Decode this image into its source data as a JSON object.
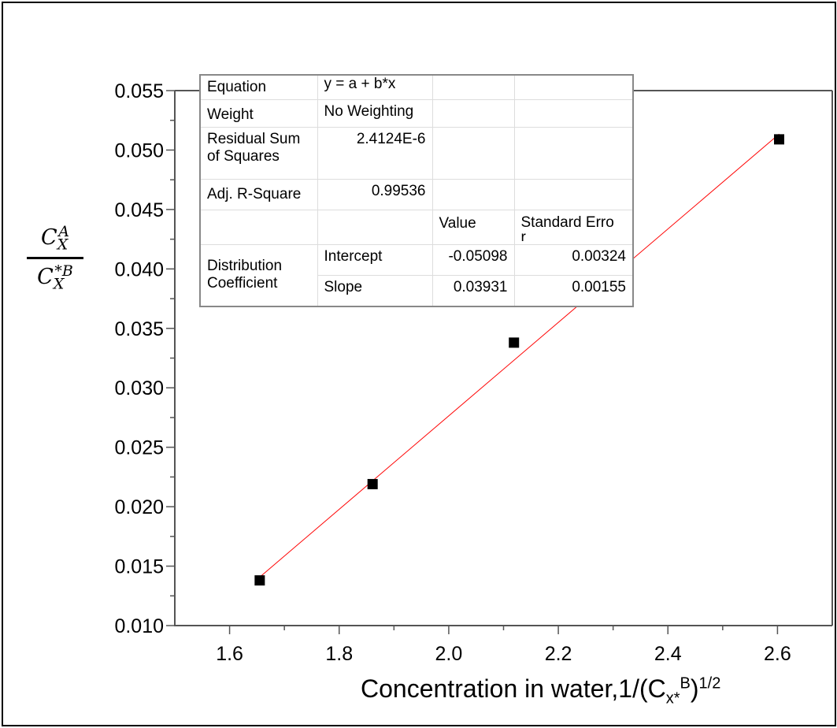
{
  "chart_data": {
    "type": "scatter",
    "xlabel": "Concentration in water,1/(C",
    "xlabel_sub": "x*",
    "xlabel_supB": "B",
    "xlabel_close": ")",
    "xlabel_sup": "1/2",
    "ylabel": {
      "num_base": "C",
      "num_sub": "X",
      "num_sup": "A",
      "den_base": "C",
      "den_sub": "X",
      "den_sup": "*B"
    },
    "xlim": [
      1.5,
      2.7
    ],
    "ylim": [
      0.01,
      0.055
    ],
    "xticks": [
      "1.6",
      "1.8",
      "2.0",
      "2.2",
      "2.4",
      "2.6"
    ],
    "yticks": [
      "0.010",
      "0.015",
      "0.020",
      "0.025",
      "0.030",
      "0.035",
      "0.040",
      "0.045",
      "0.050",
      "0.055"
    ],
    "grid": false,
    "series": [
      {
        "x": [
          1.655,
          1.861,
          2.119,
          2.603
        ],
        "y": [
          0.0138,
          0.0219,
          0.0338,
          0.0509
        ],
        "marker": "square",
        "color": "#000000"
      }
    ],
    "fit_line": {
      "intercept": -0.05098,
      "slope": 0.03931,
      "x_range": [
        1.655,
        2.603
      ],
      "color": "#ff0000"
    },
    "stats_table": {
      "equation_label": "Equation",
      "equation": "y = a + b*x",
      "weight_label": "Weight",
      "weight": "No Weighting",
      "rss_label_1": "Residual Sum",
      "rss_label_2": "of Squares",
      "rss": "2.4124E-6",
      "adjr2_label": "Adj. R-Square",
      "adjr2": "0.99536",
      "value_header": "Value",
      "stderr_header_1": "Standard Erro",
      "stderr_header_2": "r",
      "group_label_1": "Distribution",
      "group_label_2": "Coefficient",
      "intercept_label": "Intercept",
      "intercept_value": "-0.05098",
      "intercept_error": "0.00324",
      "slope_label": "Slope",
      "slope_value": "0.03931",
      "slope_error": "0.00155"
    }
  }
}
